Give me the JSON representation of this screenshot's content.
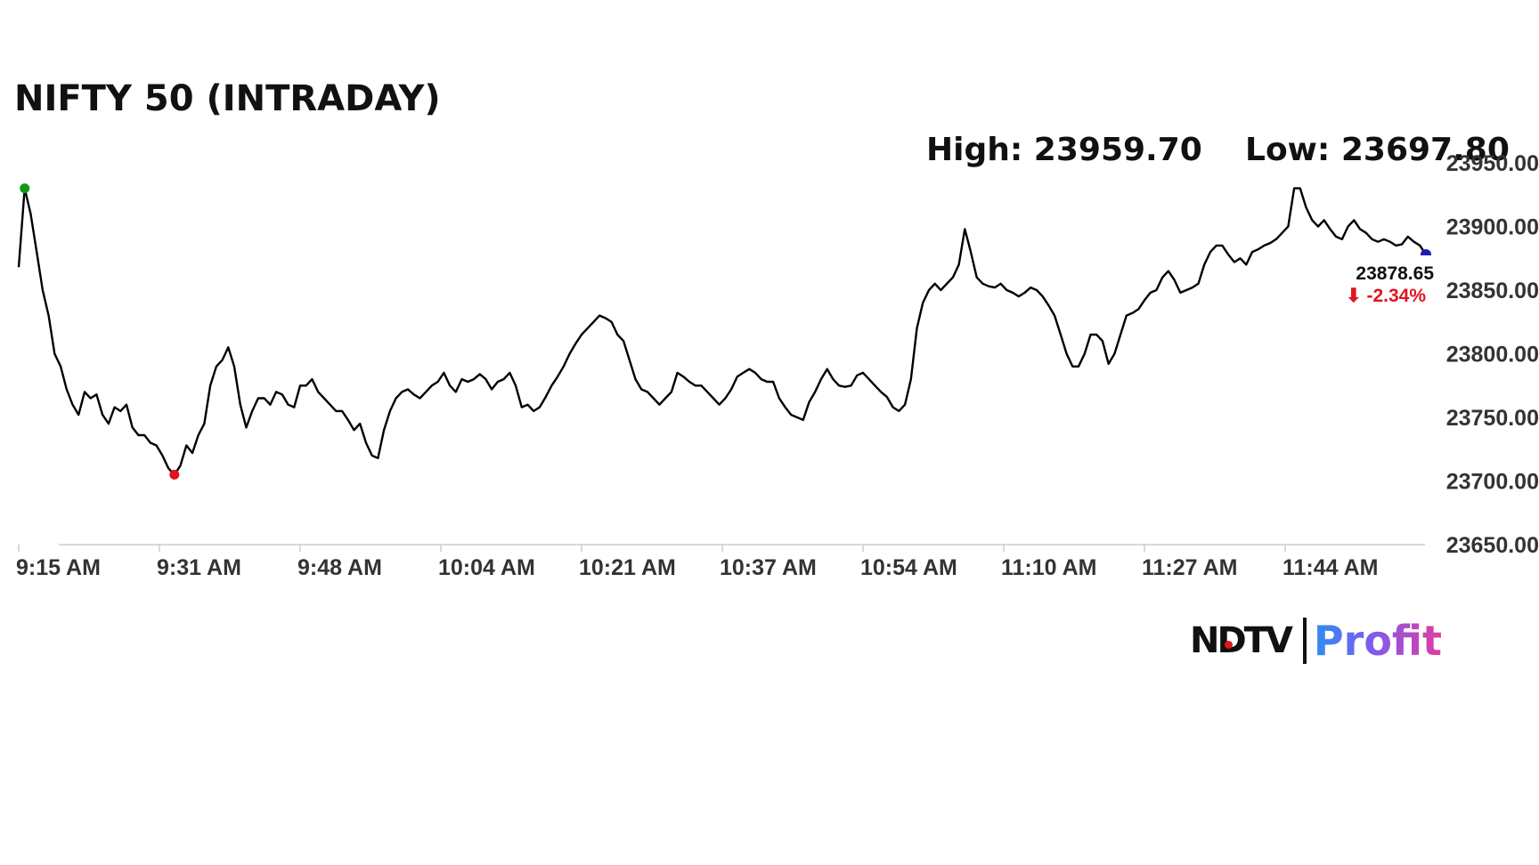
{
  "chart_data": {
    "type": "line",
    "title": "NIFTY 50 (INTRADAY)",
    "high_label": "High: 23959.70",
    "low_label": "Low: 23697.80",
    "xlabel": "",
    "ylabel": "",
    "x_ticks": [
      "9:15 AM",
      "9:31 AM",
      "9:48 AM",
      "10:04 AM",
      "10:21 AM",
      "10:37 AM",
      "10:54 AM",
      "11:10 AM",
      "11:27 AM",
      "11:44 AM"
    ],
    "y_ticks": [
      "23950.00",
      "23900.00",
      "23850.00",
      "23800.00",
      "23750.00",
      "23700.00",
      "23650.00"
    ],
    "ylim": [
      23650,
      23950
    ],
    "grid": false,
    "series": [
      {
        "values": [
          23868,
          23930,
          23910,
          23880,
          23850,
          23830,
          23800,
          23790,
          23772,
          23760,
          23752,
          23770,
          23765,
          23768,
          23752,
          23745,
          23758,
          23755,
          23760,
          23742,
          23736,
          23736,
          23730,
          23728,
          23720,
          23710,
          23705,
          23712,
          23728,
          23722,
          23736,
          23745,
          23775,
          23790,
          23795,
          23805,
          23790,
          23760,
          23742,
          23755,
          23765,
          23765,
          23760,
          23770,
          23768,
          23760,
          23758,
          23775,
          23775,
          23780,
          23770,
          23765,
          23760,
          23755,
          23755,
          23748,
          23740,
          23745,
          23730,
          23720,
          23718,
          23740,
          23755,
          23765,
          23770,
          23772,
          23768,
          23765,
          23770,
          23775,
          23778,
          23785,
          23775,
          23770,
          23780,
          23778,
          23780,
          23784,
          23780,
          23772,
          23778,
          23780,
          23785,
          23775,
          23758,
          23760,
          23755,
          23758,
          23766,
          23775,
          23782,
          23790,
          23800,
          23808,
          23815,
          23820,
          23825,
          23830,
          23828,
          23825,
          23815,
          23810,
          23795,
          23780,
          23772,
          23770,
          23765,
          23760,
          23765,
          23770,
          23785,
          23782,
          23778,
          23775,
          23775,
          23770,
          23765,
          23760,
          23765,
          23772,
          23782,
          23785,
          23788,
          23785,
          23780,
          23778,
          23778,
          23765,
          23758,
          23752,
          23750,
          23748,
          23762,
          23770,
          23780,
          23788,
          23780,
          23775,
          23774,
          23775,
          23783,
          23785,
          23780,
          23775,
          23770,
          23766,
          23758,
          23755,
          23760,
          23780,
          23820,
          23840,
          23850,
          23855,
          23850,
          23855,
          23860,
          23870,
          23898,
          23880,
          23860,
          23855,
          23853,
          23852,
          23855,
          23850,
          23848,
          23845,
          23848,
          23852,
          23850,
          23845,
          23838,
          23830,
          23815,
          23800,
          23790,
          23790,
          23800,
          23815,
          23815,
          23810,
          23792,
          23800,
          23815,
          23830,
          23832,
          23835,
          23842,
          23848,
          23850,
          23860,
          23865,
          23858,
          23848,
          23850,
          23852,
          23855,
          23870,
          23880,
          23885,
          23885,
          23878,
          23872,
          23875,
          23870,
          23880,
          23882,
          23885,
          23887,
          23890,
          23895,
          23900,
          23930,
          23930,
          23915,
          23905,
          23900,
          23905,
          23898,
          23892,
          23890,
          23900,
          23905,
          23898,
          23895,
          23890,
          23888,
          23890,
          23888,
          23885,
          23886,
          23892,
          23888,
          23885,
          23878
        ]
      }
    ],
    "last_value_label": "23878.65",
    "change_label": "-2.34%",
    "change_arrow": "⬇",
    "colors": {
      "line": "#000000",
      "high_marker": "#119911",
      "low_marker": "#e0141e",
      "last_marker": "#1e1eb4",
      "change": "#e0141e",
      "axis": "#cccccc",
      "tick_text": "#333333"
    }
  },
  "logo": {
    "ndtv": "NDTV",
    "profit": "Profit"
  }
}
